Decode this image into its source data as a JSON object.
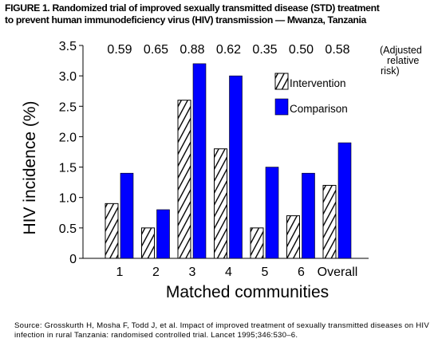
{
  "title_line1": "FIGURE 1. Randomized trial of improved sexually transmitted disease (STD) treatment",
  "title_line2": "to prevent human immunodeficiency virus (HIV) transmission — Mwanza, Tanzania",
  "source_text": "Source: Grosskurth H, Mosha F, Todd J, et al. Impact of improved treatment of sexually transmitted diseases on HIV infection in rural Tanzania: randomised controlled trial. Lancet 1995;346:530–6.",
  "chart_data": {
    "type": "bar",
    "xlabel": "Matched communities",
    "ylabel": "HIV incidence (%)",
    "ylim": [
      0,
      3.5
    ],
    "yticks": [
      "0",
      "0.5",
      "1.0",
      "1.5",
      "2.0",
      "2.5",
      "3.0",
      "3.5"
    ],
    "categories": [
      "1",
      "2",
      "3",
      "4",
      "5",
      "6",
      "Overall"
    ],
    "series": [
      {
        "name": "Intervention",
        "values": [
          0.9,
          0.5,
          2.6,
          1.8,
          0.5,
          0.7,
          1.2
        ]
      },
      {
        "name": "Comparison",
        "values": [
          1.4,
          0.8,
          3.2,
          3.0,
          1.5,
          1.4,
          1.9
        ]
      }
    ],
    "annotations": [
      "0.59",
      "0.65",
      "0.88",
      "0.62",
      "0.35",
      "0.50",
      "0.58"
    ],
    "annotation_note_lines": [
      "(Adjusted",
      "relative",
      "risk)"
    ],
    "legend_position": "top-right",
    "grid": false,
    "colors": {
      "intervention_fill": "#ffffff",
      "intervention_hatch": "#000000",
      "comparison": "#0000ff"
    }
  }
}
